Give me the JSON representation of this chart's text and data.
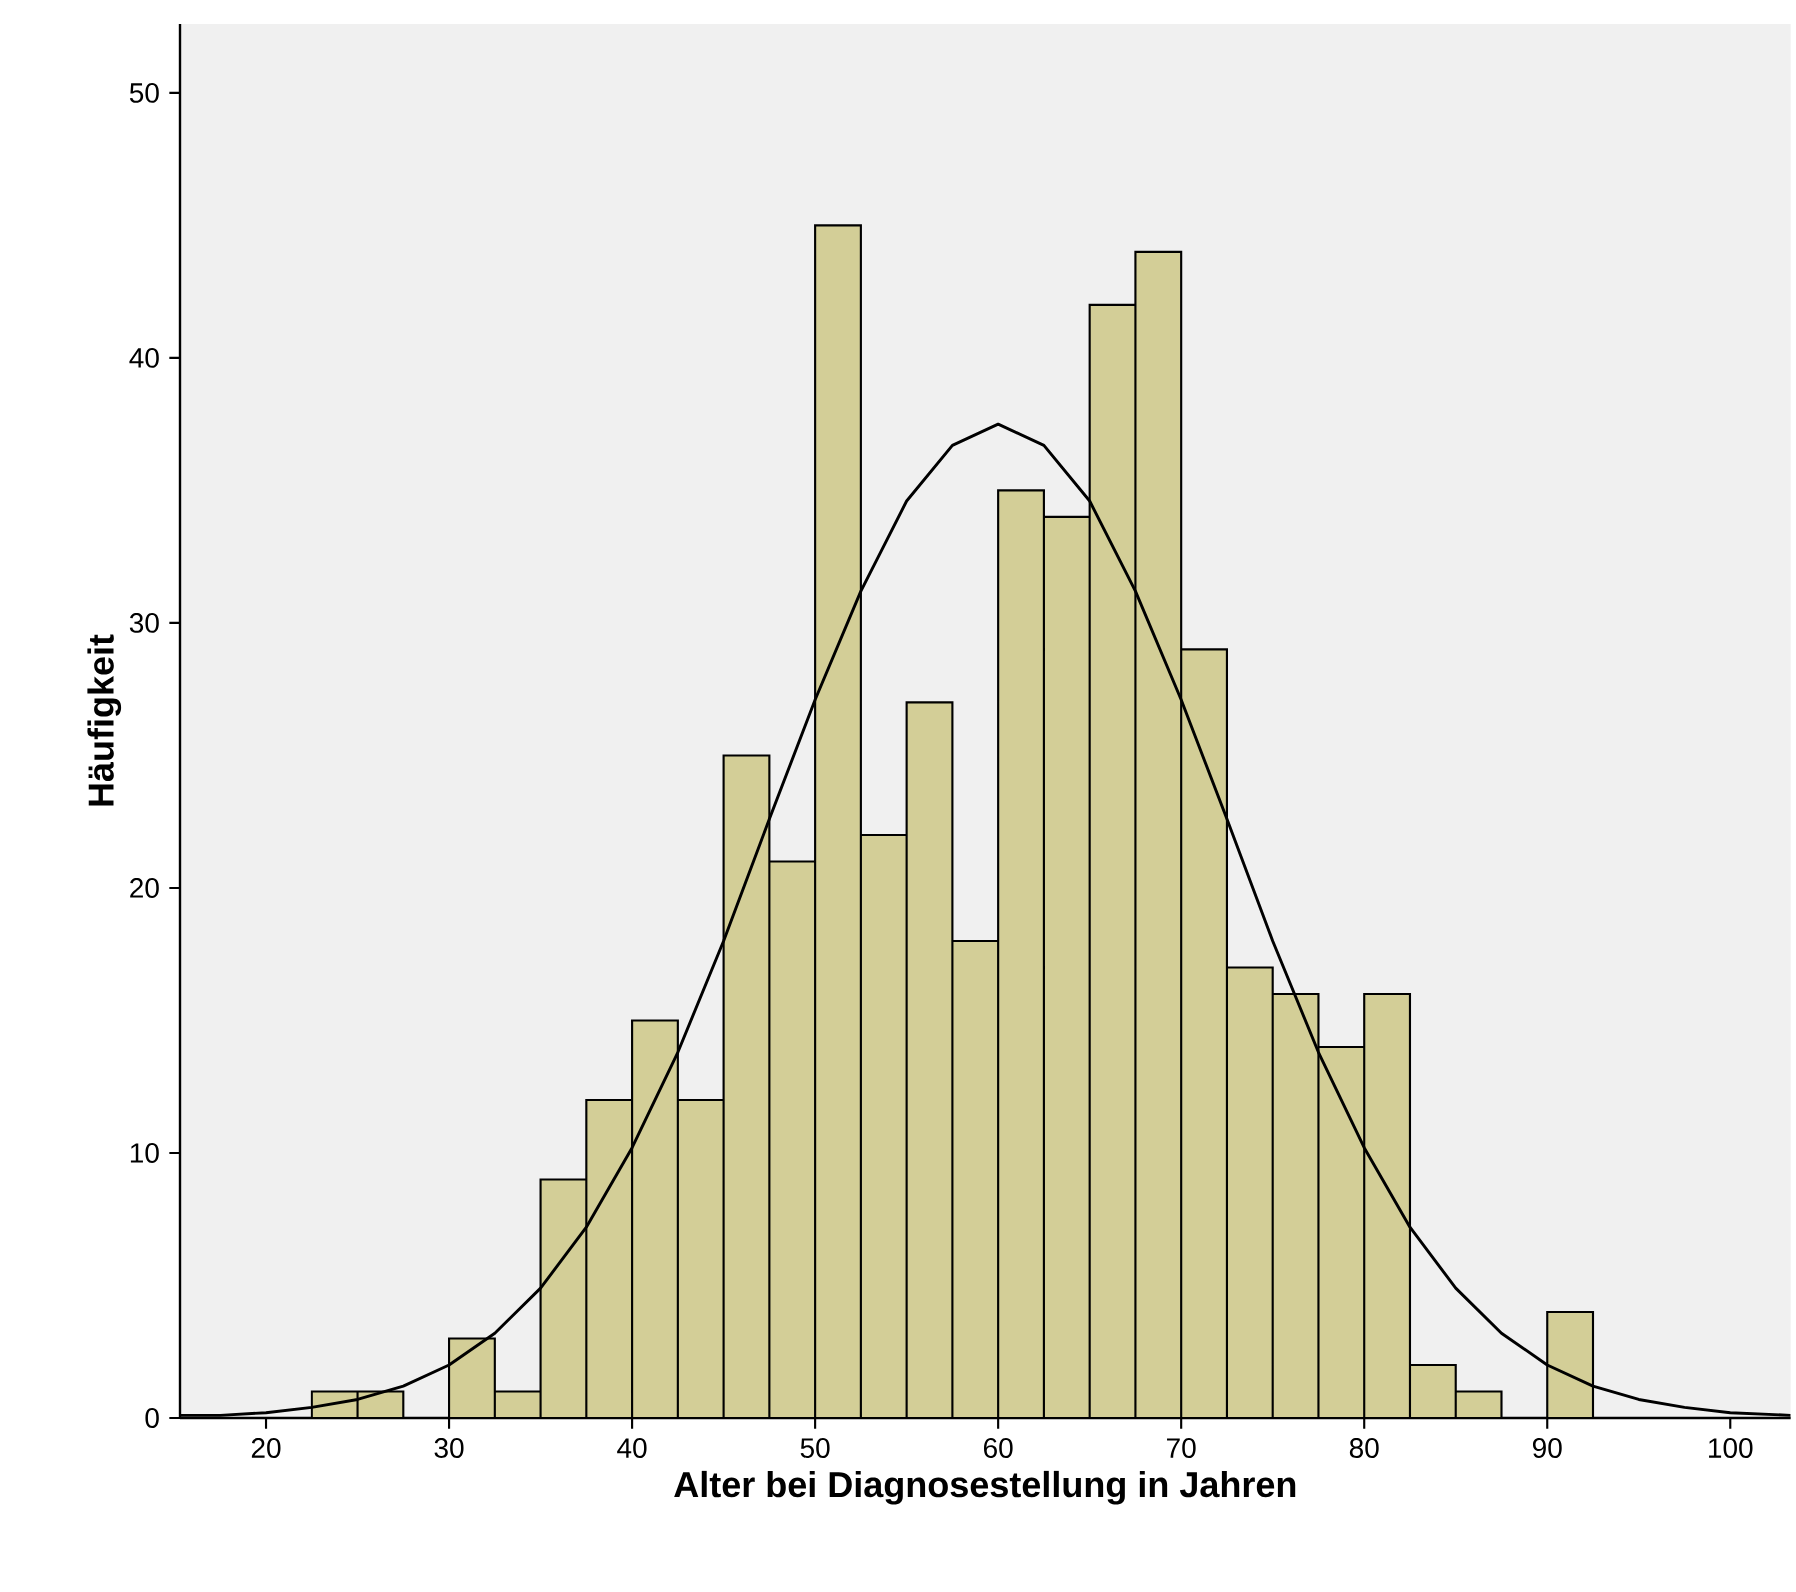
{
  "chart_data": {
    "type": "histogram",
    "xlabel": "Alter bei Diagnosestellung in Jahren",
    "ylabel": "Häufigkeit",
    "bins": [
      22.5,
      25,
      27.5,
      30,
      32.5,
      35,
      37.5,
      40,
      42.5,
      45,
      47.5,
      50,
      52.5,
      55,
      57.5,
      60,
      62.5,
      65,
      67.5,
      70,
      72.5,
      75,
      77.5,
      80,
      82.5,
      85,
      87.5,
      90,
      92.5
    ],
    "values": [
      1,
      1,
      0,
      3,
      1,
      9,
      12,
      15,
      12,
      25,
      21,
      45,
      22,
      27,
      18,
      35,
      34,
      42,
      44,
      29,
      17,
      16,
      14,
      16,
      2,
      1,
      0,
      4
    ],
    "color": "#d3ce97",
    "series": [
      {
        "type": "line",
        "color": "#000000",
        "x": [
          15.3,
          17.5,
          20,
          22.5,
          25,
          27.5,
          30,
          32.5,
          35,
          37.5,
          40,
          42.5,
          45,
          47.5,
          50,
          52.5,
          55,
          57.5,
          60,
          62.5,
          65,
          67.5,
          70,
          72.5,
          75,
          77.5,
          80,
          82.5,
          85,
          87.5,
          90,
          92.5,
          95,
          97.5,
          100,
          103.3
        ],
        "values": [
          0.1,
          0.1,
          0.2,
          0.4,
          0.7,
          1.2,
          2.0,
          3.2,
          4.9,
          7.2,
          10.2,
          13.8,
          18.0,
          22.6,
          27.1,
          31.2,
          34.6,
          36.7,
          37.5,
          36.7,
          34.6,
          31.2,
          27.1,
          22.6,
          18.0,
          13.8,
          10.2,
          7.2,
          4.9,
          3.2,
          2.0,
          1.2,
          0.7,
          0.4,
          0.2,
          0.1
        ]
      }
    ],
    "xlim": [
      15.3,
      103.3
    ],
    "ylim": [
      0,
      52.6
    ],
    "xticks": [
      20,
      30,
      40,
      50,
      60,
      70,
      80,
      90,
      100
    ],
    "yticks": [
      0,
      10,
      20,
      30,
      40,
      50
    ],
    "grid": false
  }
}
